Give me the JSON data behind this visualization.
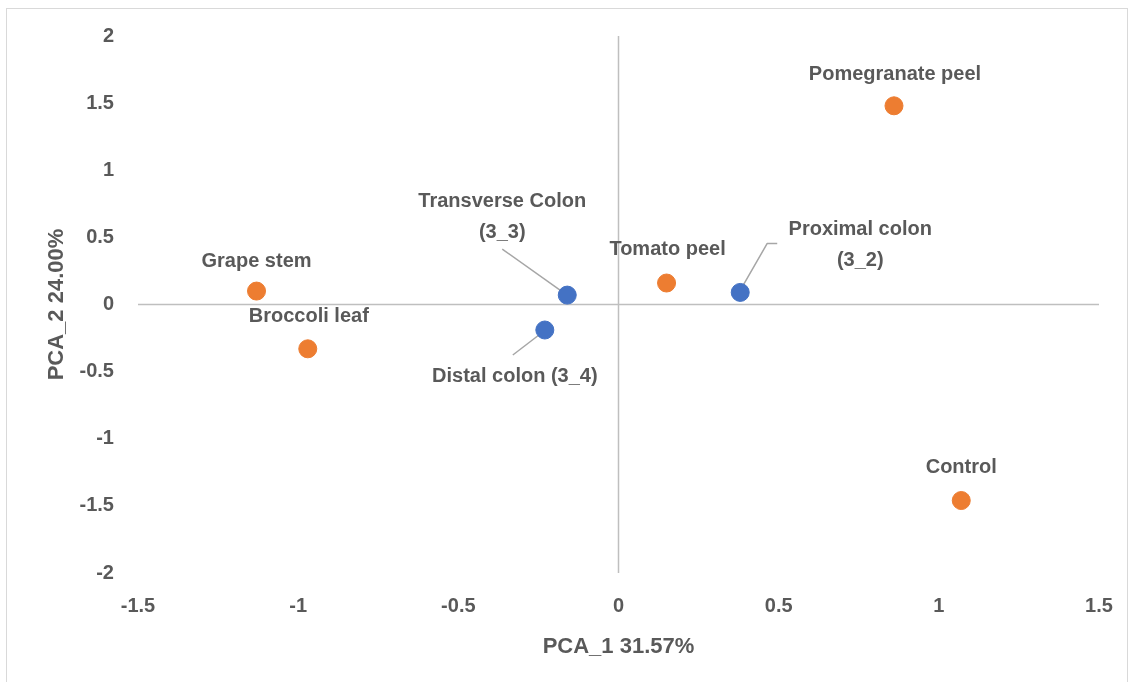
{
  "chart_data": {
    "type": "scatter",
    "xlabel": "PCA_1 31.57%",
    "ylabel": "PCA_2 24.00%",
    "xlim": [
      -1.5,
      1.5
    ],
    "xticks": [
      -1.5,
      -1,
      -0.5,
      0,
      0.5,
      1,
      1.5
    ],
    "ylim": [
      -2,
      2
    ],
    "yticks": [
      -2,
      -1.5,
      -1,
      -0.5,
      0,
      0.5,
      1,
      1.5,
      2
    ],
    "marker": "circle",
    "series": [
      {
        "color": "#ed7d31",
        "x": [
          -1.13,
          -0.97,
          0.15,
          0.86,
          1.07
        ],
        "values": [
          0.1,
          -0.33,
          0.16,
          1.48,
          -1.46
        ]
      },
      {
        "color": "#4472c4",
        "x": [
          -0.16,
          0.38,
          -0.23
        ],
        "values": [
          0.07,
          0.09,
          -0.19
        ]
      }
    ],
    "annotations": [
      {
        "text": "Grape stem",
        "x": -1.13,
        "y": 0.1
      },
      {
        "text": "Broccoli leaf",
        "x": -0.97,
        "y": -0.33
      },
      {
        "text": "Tomato peel",
        "x": 0.15,
        "y": 0.16
      },
      {
        "text": "Pomegranate peel",
        "x": 0.86,
        "y": 1.48
      },
      {
        "text": "Control",
        "x": 1.07,
        "y": -1.46
      },
      {
        "text": "Transverse Colon\n(3_3)",
        "x": -0.16,
        "y": 0.07
      },
      {
        "text": "Proximal colon\n(3_2)",
        "x": 0.38,
        "y": 0.09
      },
      {
        "text": "Distal colon (3_4)",
        "x": -0.23,
        "y": -0.19
      }
    ]
  }
}
